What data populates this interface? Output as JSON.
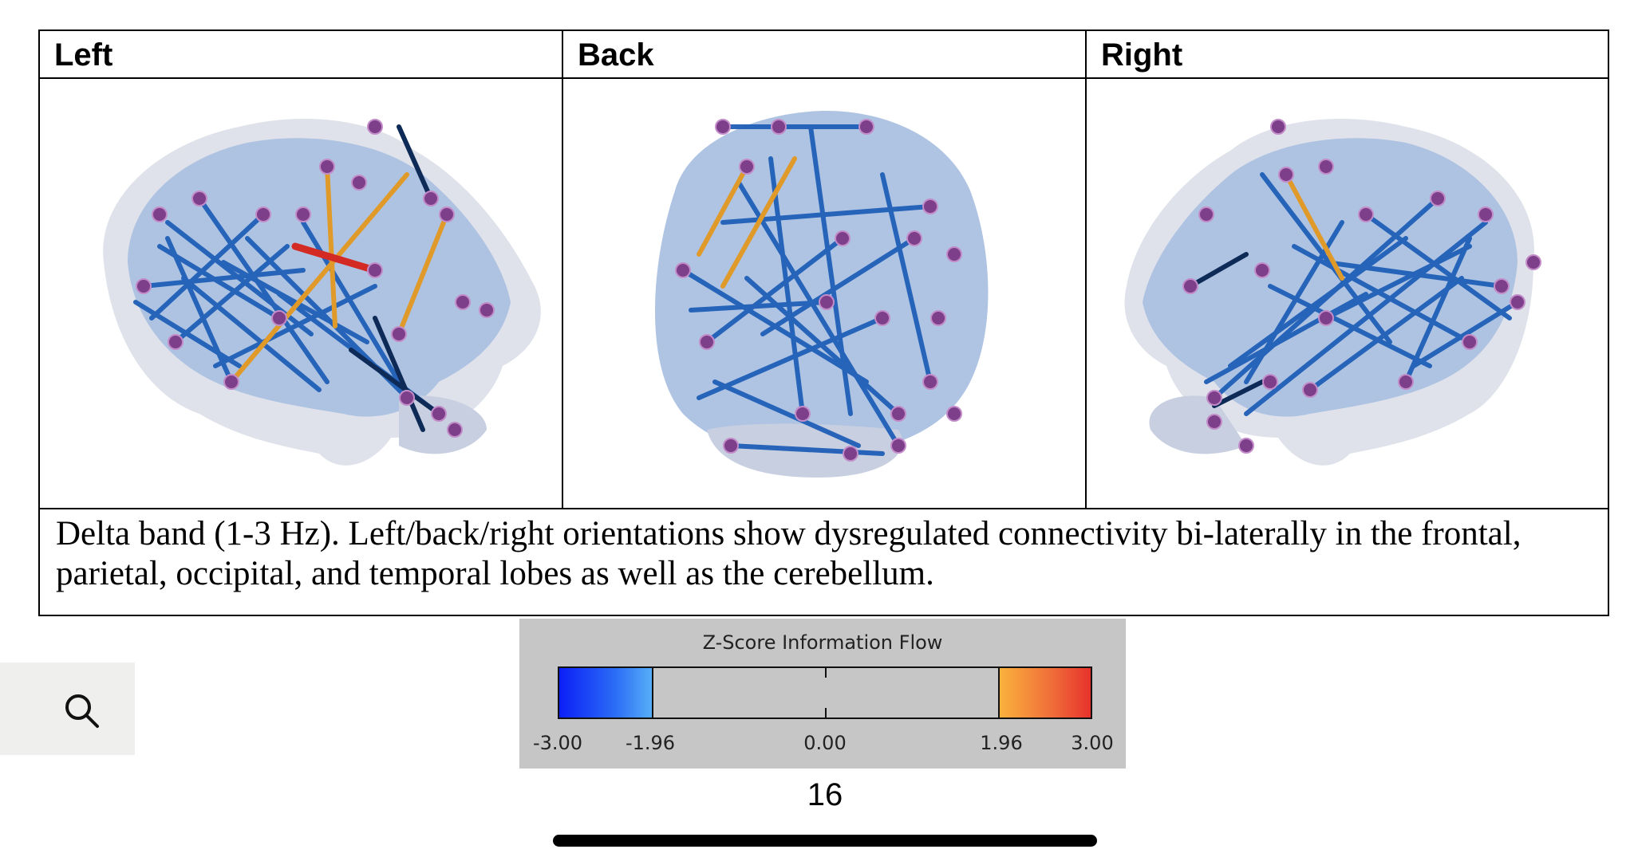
{
  "figure": {
    "headers": [
      "Left",
      "Back",
      "Right"
    ],
    "panels": [
      {
        "view": "left-lateral brain connectivity render"
      },
      {
        "view": "posterior brain connectivity render"
      },
      {
        "view": "right-lateral brain connectivity render"
      }
    ],
    "caption": "Delta band (1-3 Hz). Left/back/right orientations show dysregulated connectivity bi-laterally in the frontal, parietal, occipital, and temporal lobes as well as the cerebellum."
  },
  "legend": {
    "title": "Z-Score Information Flow",
    "ticks": [
      "-3.00",
      "-1.96",
      "0.00",
      "1.96",
      "3.00"
    ],
    "low_color": "#0b1ff7",
    "mid_low_color": "#56aef8",
    "mid_high_color": "#f9b23c",
    "high_color": "#e7322c",
    "neutral_color": "#c6c6c6"
  },
  "toolbar": {
    "search_icon": "search-icon"
  },
  "page": {
    "number": "16"
  }
}
